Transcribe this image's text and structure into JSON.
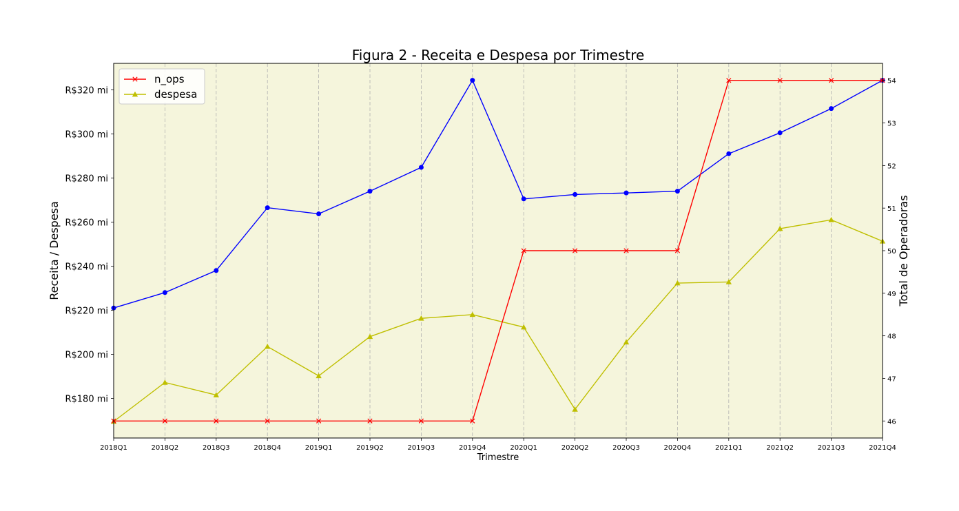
{
  "chart_data": {
    "type": "line",
    "title": "Figura 2 - Receita e Despesa por Trimestre",
    "xlabel": "Trimestre",
    "ylabel": "Receita / Despesa",
    "y2label": "Total de Operadoras",
    "categories": [
      "2018Q1",
      "2018Q2",
      "2018Q3",
      "2018Q4",
      "2019Q1",
      "2019Q2",
      "2019Q3",
      "2019Q4",
      "2020Q1",
      "2020Q2",
      "2020Q3",
      "2020Q4",
      "2021Q1",
      "2021Q2",
      "2021Q3",
      "2021Q4"
    ],
    "ylim": [
      162,
      332
    ],
    "y2lim": [
      45.6,
      54.4
    ],
    "yticks": [
      {
        "value": 180,
        "label": "R$180 mi"
      },
      {
        "value": 200,
        "label": "R$200 mi"
      },
      {
        "value": 220,
        "label": "R$220 mi"
      },
      {
        "value": 240,
        "label": "R$240 mi"
      },
      {
        "value": 260,
        "label": "R$260 mi"
      },
      {
        "value": 280,
        "label": "R$280 mi"
      },
      {
        "value": 300,
        "label": "R$300 mi"
      },
      {
        "value": 320,
        "label": "R$320 mi"
      }
    ],
    "y2ticks": [
      {
        "value": 46,
        "label": "46"
      },
      {
        "value": 47,
        "label": "47"
      },
      {
        "value": 48,
        "label": "48"
      },
      {
        "value": 49,
        "label": "49"
      },
      {
        "value": 50,
        "label": "50"
      },
      {
        "value": 51,
        "label": "51"
      },
      {
        "value": 52,
        "label": "52"
      },
      {
        "value": 53,
        "label": "53"
      },
      {
        "value": 54,
        "label": "54"
      }
    ],
    "grid": "vertical-dashed",
    "legend": "top-left",
    "background": "#f5f5dc",
    "series": [
      {
        "name": "",
        "axis": "left",
        "color": "#0000ff",
        "marker": "circle",
        "values": [
          221,
          228,
          238,
          266.5,
          263.7,
          274,
          284.8,
          324.3,
          270.5,
          272.5,
          273.2,
          274,
          291,
          300.5,
          311.5,
          324.3
        ]
      },
      {
        "name": "despesa",
        "axis": "left",
        "color": "#bfbf00",
        "marker": "triangle",
        "values": [
          169.5,
          187.2,
          181.5,
          203.5,
          190.2,
          208,
          216.3,
          218,
          212.3,
          175,
          205.5,
          232.3,
          232.8,
          257,
          261,
          251.3
        ]
      },
      {
        "name": "n_ops",
        "axis": "right",
        "color": "#ff0000",
        "marker": "x",
        "values": [
          46,
          46,
          46,
          46,
          46,
          46,
          46,
          46,
          50,
          50,
          50,
          50,
          54,
          54,
          54,
          54
        ]
      }
    ],
    "legend_entries": [
      {
        "label": "n_ops",
        "color": "#ff0000",
        "marker": "x"
      },
      {
        "label": "despesa",
        "color": "#bfbf00",
        "marker": "triangle"
      }
    ]
  }
}
